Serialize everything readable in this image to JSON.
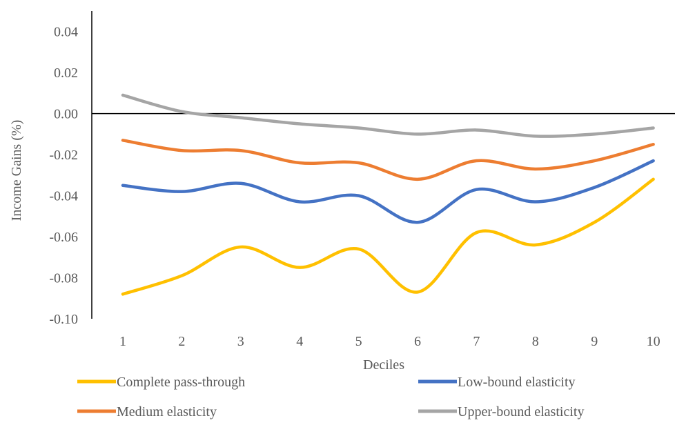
{
  "chart_data": {
    "type": "line",
    "title": "",
    "xlabel": "Deciles",
    "ylabel": "Income Gains (%)",
    "categories": [
      "1",
      "2",
      "3",
      "4",
      "5",
      "6",
      "7",
      "8",
      "9",
      "10"
    ],
    "ylim": [
      -0.1,
      0.05
    ],
    "yticks": [
      "0.04",
      "0.02",
      "0.00",
      "-0.02",
      "-0.04",
      "-0.06",
      "-0.08",
      "-0.10"
    ],
    "ytick_values": [
      0.04,
      0.02,
      0.0,
      -0.02,
      -0.04,
      -0.06,
      -0.08,
      -0.1
    ],
    "grid": false,
    "smooth": true,
    "legend_position": "bottom",
    "series": [
      {
        "name": "Complete pass-through",
        "color": "#FFC000",
        "values": [
          -0.088,
          -0.079,
          -0.065,
          -0.075,
          -0.066,
          -0.087,
          -0.058,
          -0.064,
          -0.053,
          -0.032
        ]
      },
      {
        "name": "Low-bound elasticity",
        "color": "#4472C4",
        "values": [
          -0.035,
          -0.038,
          -0.034,
          -0.043,
          -0.04,
          -0.053,
          -0.037,
          -0.043,
          -0.036,
          -0.023
        ]
      },
      {
        "name": "Medium elasticity",
        "color": "#ED7D31",
        "values": [
          -0.013,
          -0.018,
          -0.018,
          -0.024,
          -0.024,
          -0.032,
          -0.023,
          -0.027,
          -0.023,
          -0.015
        ]
      },
      {
        "name": "Upper-bound elasticity",
        "color": "#A5A5A5",
        "values": [
          0.009,
          0.001,
          -0.002,
          -0.005,
          -0.007,
          -0.01,
          -0.008,
          -0.011,
          -0.01,
          -0.007
        ]
      }
    ]
  }
}
